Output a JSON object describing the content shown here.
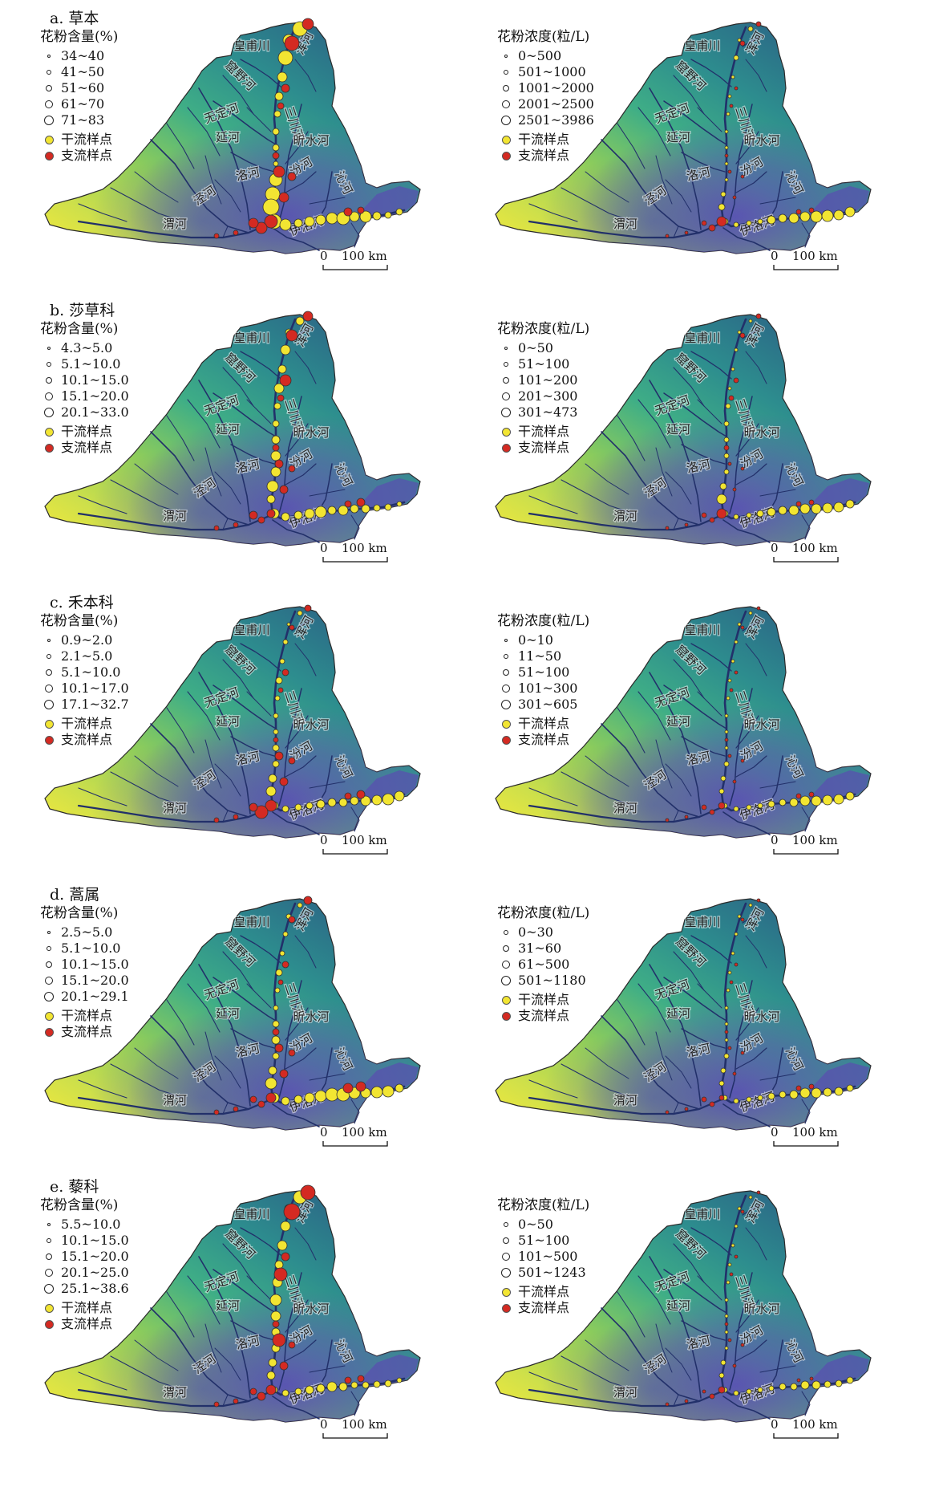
{
  "colors": {
    "mainstream": "#f2e532",
    "tributary": "#d42a22",
    "river": "#22306a"
  },
  "river_labels": [
    "皇甫川",
    "浑河",
    "窟野河",
    "无定河",
    "三川河",
    "延河",
    "昕水河",
    "洛河",
    "汾河",
    "沁河",
    "泾河",
    "渭河",
    "伊洛河"
  ],
  "scale_bar": {
    "zero": "0",
    "distance": "100 km"
  },
  "point_legend": {
    "mainstream": "干流样点",
    "tributary": "支流样点"
  },
  "panels": [
    {
      "title": "a. 草本",
      "left_legend": {
        "title": "花粉含量(%)",
        "classes": [
          "34~40",
          "41~50",
          "51~60",
          "61~70",
          "71~83"
        ]
      },
      "right_legend": {
        "title": "花粉浓度(粒/L)",
        "classes": [
          "0~500",
          "501~1000",
          "1001~2000",
          "2001~2500",
          "2501~3986"
        ]
      }
    },
    {
      "title": "b. 莎草科",
      "left_legend": {
        "title": "花粉含量(%)",
        "classes": [
          "4.3~5.0",
          "5.1~10.0",
          "10.1~15.0",
          "15.1~20.0",
          "20.1~33.0"
        ]
      },
      "right_legend": {
        "title": "花粉浓度(粒/L)",
        "classes": [
          "0~50",
          "51~100",
          "101~200",
          "201~300",
          "301~473"
        ]
      }
    },
    {
      "title": "c. 禾本科",
      "left_legend": {
        "title": "花粉含量(%)",
        "classes": [
          "0.9~2.0",
          "2.1~5.0",
          "5.1~10.0",
          "10.1~17.0",
          "17.1~32.7"
        ]
      },
      "right_legend": {
        "title": "花粉浓度(粒/L)",
        "classes": [
          "0~10",
          "11~50",
          "51~100",
          "101~300",
          "301~605"
        ]
      }
    },
    {
      "title": "d. 蒿属",
      "left_legend": {
        "title": "花粉含量(%)",
        "classes": [
          "2.5~5.0",
          "5.1~10.0",
          "10.1~15.0",
          "15.1~20.0",
          "20.1~29.1"
        ]
      },
      "right_legend": {
        "title": "花粉浓度(粒/L)",
        "classes": [
          "0~30",
          "31~60",
          "61~500",
          "501~1180"
        ]
      }
    },
    {
      "title": "e. 藜科",
      "left_legend": {
        "title": "花粉含量(%)",
        "classes": [
          "5.5~10.0",
          "10.1~15.0",
          "15.1~20.0",
          "20.1~25.0",
          "25.1~38.6"
        ]
      },
      "right_legend": {
        "title": "花粉浓度(粒/L)",
        "classes": [
          "0~50",
          "51~100",
          "101~500",
          "501~1243"
        ]
      }
    }
  ]
}
